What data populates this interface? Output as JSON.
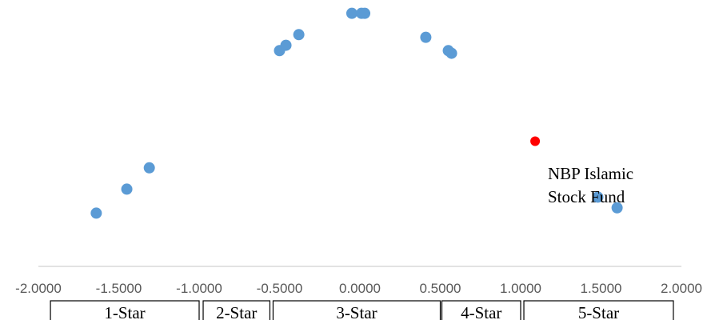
{
  "chart_data": {
    "type": "scatter",
    "title": "",
    "xlabel": "",
    "ylabel": "",
    "xlim": [
      -2.0,
      2.0
    ],
    "ylim": [
      0,
      1
    ],
    "x_ticks": [
      "-2.0000",
      "-1.5000",
      "-1.0000",
      "-0.5000",
      "0.0000",
      "0.5000",
      "1.0000",
      "1.5000",
      "2.0000"
    ],
    "x_tick_values": [
      -2.0,
      -1.5,
      -1.0,
      -0.5,
      0.0,
      0.5,
      1.0,
      1.5,
      2.0
    ],
    "y_axis_visible": false,
    "grid": false,
    "legend": "none",
    "colors": {
      "points": "#5b9bd5",
      "highlight": "#ff0000",
      "axis": "#d9d9d9"
    },
    "points": [
      {
        "x": -1.64,
        "y": 0.2
      },
      {
        "x": -1.45,
        "y": 0.29
      },
      {
        "x": -1.31,
        "y": 0.37
      },
      {
        "x": -0.5,
        "y": 0.81
      },
      {
        "x": -0.46,
        "y": 0.83
      },
      {
        "x": -0.38,
        "y": 0.87
      },
      {
        "x": -0.05,
        "y": 0.95
      },
      {
        "x": 0.01,
        "y": 0.95
      },
      {
        "x": 0.03,
        "y": 0.95
      },
      {
        "x": 0.41,
        "y": 0.86
      },
      {
        "x": 0.55,
        "y": 0.81
      },
      {
        "x": 0.57,
        "y": 0.8
      },
      {
        "x": 1.48,
        "y": 0.26
      },
      {
        "x": 1.6,
        "y": 0.22
      }
    ],
    "highlight_point": {
      "x": 1.09,
      "y": 0.47
    },
    "annotations": [
      {
        "text": "NBP Islamic Stock Fund",
        "lines": [
          "NBP Islamic",
          "Stock Fund"
        ]
      }
    ],
    "rating_bands": [
      {
        "label": "1-Star",
        "from": -1.925,
        "to": -1.0
      },
      {
        "label": "2-Star",
        "from": -0.975,
        "to": -0.56
      },
      {
        "label": "3-Star",
        "from": -0.54,
        "to": 0.5
      },
      {
        "label": "4-Star",
        "from": 0.51,
        "to": 1.0
      },
      {
        "label": "5-Star",
        "from": 1.02,
        "to": 1.95
      }
    ]
  }
}
